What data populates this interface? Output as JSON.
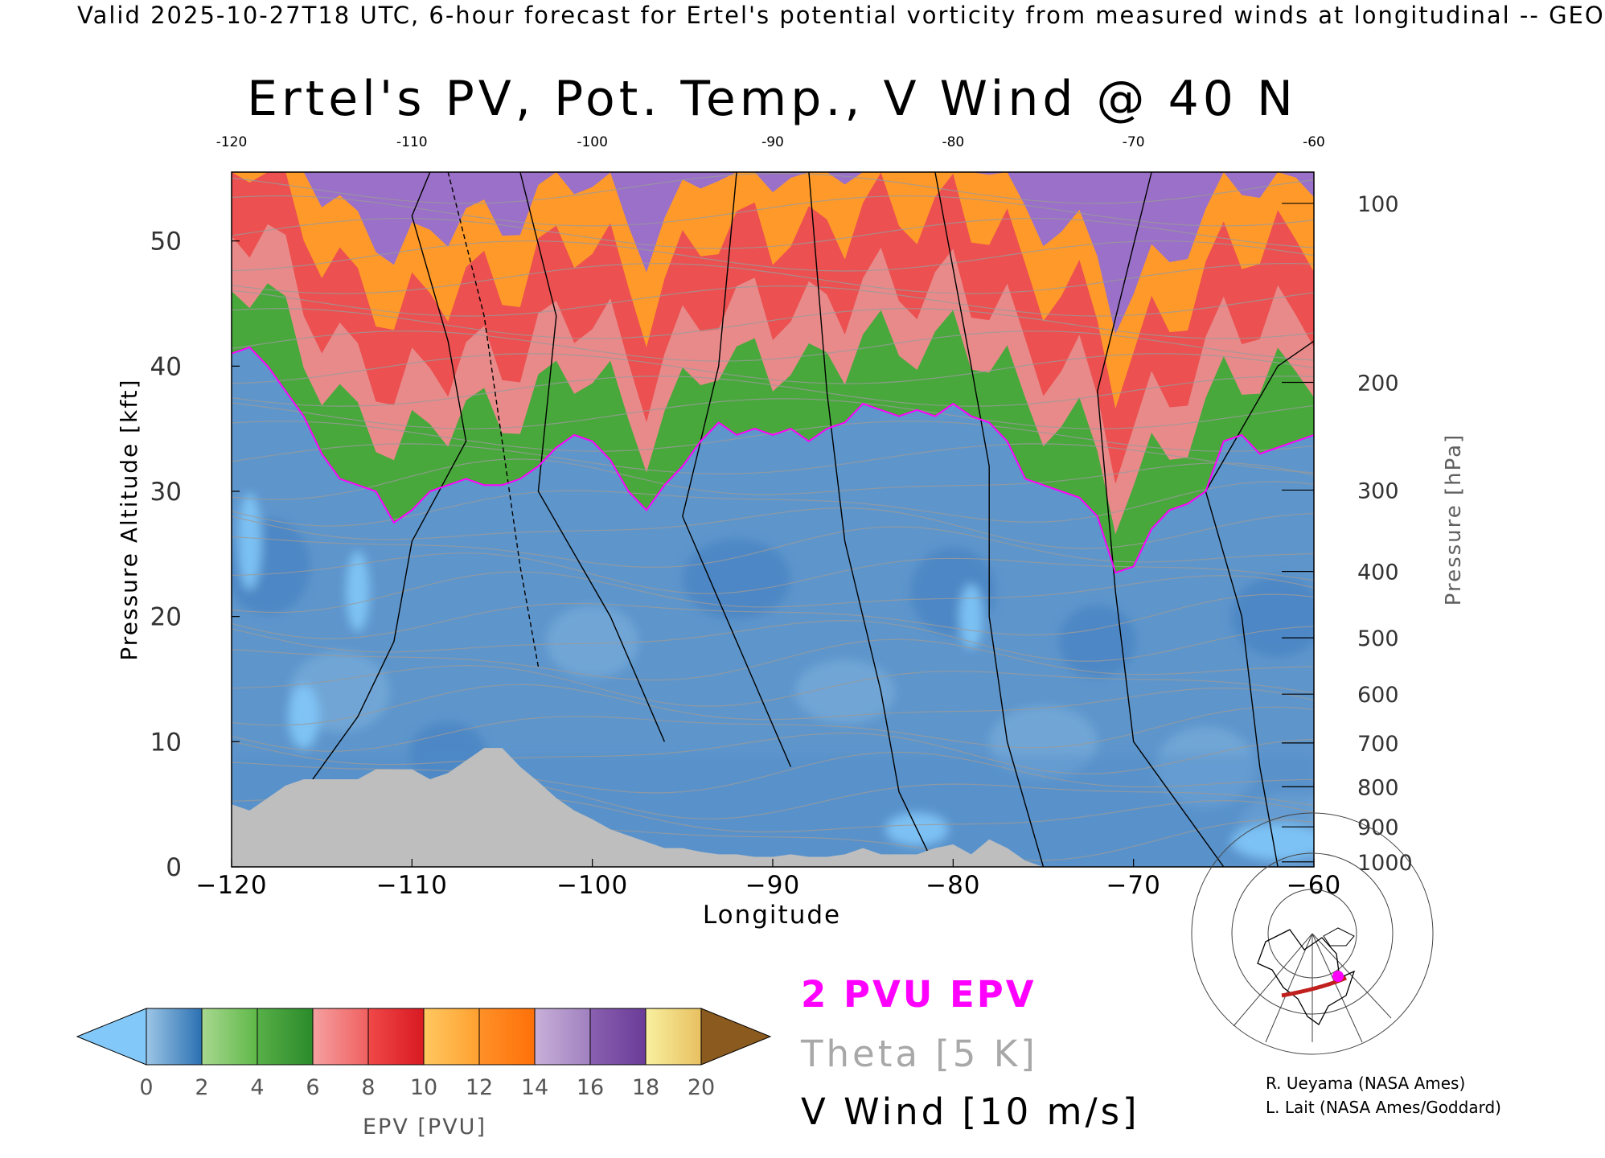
{
  "header": "Valid 2025-10-27T18 UTC, 6-hour forecast for Ertel's potential vorticity from measured winds at longitudinal -- GEO",
  "chart_data": {
    "type": "heatmap",
    "title": "Ertel's PV, Pot. Temp., V Wind @ 40 N",
    "xlabel": "Longitude",
    "ylabel_left": "Pressure Altitude [kft]",
    "ylabel_right": "Pressure [hPa]",
    "xlim": [
      -120,
      -60
    ],
    "ylim": [
      0,
      55.5
    ],
    "x_ticks": [
      -120,
      -110,
      -100,
      -90,
      -80,
      -70,
      -60
    ],
    "x_tick_labels": [
      "−120",
      "−110",
      "−100",
      "−90",
      "−80",
      "−70",
      "−60"
    ],
    "top_tick_labels": [
      "-120",
      "-110",
      "-100",
      "-90",
      "-80",
      "-70",
      "-60"
    ],
    "y_ticks": [
      0,
      10,
      20,
      30,
      40,
      50
    ],
    "y_tick_labels": [
      "0",
      "10",
      "20",
      "30",
      "40",
      "50"
    ],
    "pressure_ticks": [
      {
        "label": "100",
        "kft": 53.0
      },
      {
        "label": "200",
        "kft": 38.7
      },
      {
        "label": "300",
        "kft": 30.1
      },
      {
        "label": "400",
        "kft": 23.6
      },
      {
        "label": "500",
        "kft": 18.3
      },
      {
        "label": "600",
        "kft": 13.8
      },
      {
        "label": "700",
        "kft": 9.9
      },
      {
        "label": "800",
        "kft": 6.4
      },
      {
        "label": "900",
        "kft": 3.2
      },
      {
        "label": "1000",
        "kft": 0.4
      }
    ],
    "tropopause_2pvu_kft": [
      [
        -120,
        41.0
      ],
      [
        -119,
        41.5
      ],
      [
        -118,
        40.0
      ],
      [
        -117,
        38.0
      ],
      [
        -116,
        36.0
      ],
      [
        -115,
        33.0
      ],
      [
        -114,
        31.0
      ],
      [
        -113,
        30.5
      ],
      [
        -112,
        30.0
      ],
      [
        -111,
        27.5
      ],
      [
        -110,
        28.5
      ],
      [
        -109,
        30.0
      ],
      [
        -108,
        30.5
      ],
      [
        -107,
        31.0
      ],
      [
        -106,
        30.5
      ],
      [
        -105,
        30.5
      ],
      [
        -104,
        31.0
      ],
      [
        -103,
        32.0
      ],
      [
        -102,
        33.5
      ],
      [
        -101,
        34.5
      ],
      [
        -100,
        34.0
      ],
      [
        -99,
        32.5
      ],
      [
        -98,
        30.0
      ],
      [
        -97,
        28.5
      ],
      [
        -96,
        30.5
      ],
      [
        -95,
        32.0
      ],
      [
        -94,
        34.0
      ],
      [
        -93,
        35.5
      ],
      [
        -92,
        34.5
      ],
      [
        -91,
        35.0
      ],
      [
        -90,
        34.5
      ],
      [
        -89,
        35.0
      ],
      [
        -88,
        34.0
      ],
      [
        -87,
        35.0
      ],
      [
        -86,
        35.5
      ],
      [
        -85,
        37.0
      ],
      [
        -84,
        36.5
      ],
      [
        -83,
        36.0
      ],
      [
        -82,
        36.5
      ],
      [
        -81,
        36.0
      ],
      [
        -80,
        37.0
      ],
      [
        -79,
        36.0
      ],
      [
        -78,
        35.5
      ],
      [
        -77,
        34.0
      ],
      [
        -76,
        31.0
      ],
      [
        -75,
        30.5
      ],
      [
        -74,
        30.0
      ],
      [
        -73,
        29.5
      ],
      [
        -72,
        28.0
      ],
      [
        -71,
        23.5
      ],
      [
        -70,
        24.0
      ],
      [
        -69,
        27.0
      ],
      [
        -68,
        28.5
      ],
      [
        -67,
        29.0
      ],
      [
        -66,
        30.0
      ],
      [
        -65,
        34.0
      ],
      [
        -64,
        34.5
      ],
      [
        -63,
        33.0
      ],
      [
        -62,
        33.5
      ],
      [
        -61,
        34.0
      ],
      [
        -60,
        34.5
      ]
    ],
    "terrain_kft": [
      [
        -120,
        5.0
      ],
      [
        -119,
        4.5
      ],
      [
        -118,
        5.5
      ],
      [
        -117,
        6.5
      ],
      [
        -116,
        7.0
      ],
      [
        -115,
        7.0
      ],
      [
        -114,
        7.0
      ],
      [
        -113,
        7.0
      ],
      [
        -112,
        7.8
      ],
      [
        -111,
        7.8
      ],
      [
        -110,
        7.8
      ],
      [
        -109,
        7.0
      ],
      [
        -108,
        7.5
      ],
      [
        -107,
        8.5
      ],
      [
        -106,
        9.5
      ],
      [
        -105,
        9.5
      ],
      [
        -104,
        8.0
      ],
      [
        -103,
        6.8
      ],
      [
        -102,
        5.5
      ],
      [
        -101,
        4.5
      ],
      [
        -100,
        3.8
      ],
      [
        -99,
        3.0
      ],
      [
        -98,
        2.5
      ],
      [
        -97,
        2.0
      ],
      [
        -96,
        1.5
      ],
      [
        -95,
        1.5
      ],
      [
        -94,
        1.2
      ],
      [
        -93,
        1.0
      ],
      [
        -92,
        1.0
      ],
      [
        -91,
        0.8
      ],
      [
        -90,
        0.8
      ],
      [
        -89,
        1.0
      ],
      [
        -88,
        0.8
      ],
      [
        -87,
        0.8
      ],
      [
        -86,
        1.0
      ],
      [
        -85,
        1.5
      ],
      [
        -84,
        1.0
      ],
      [
        -83,
        1.0
      ],
      [
        -82,
        1.0
      ],
      [
        -81,
        1.5
      ],
      [
        -80,
        1.8
      ],
      [
        -79,
        1.0
      ],
      [
        -78,
        2.2
      ],
      [
        -77,
        1.5
      ],
      [
        -76,
        0.5
      ],
      [
        -75,
        0.0
      ],
      [
        -60,
        0.0
      ]
    ],
    "colorbar": {
      "label": "EPV [PVU]",
      "ticks": [
        "0",
        "2",
        "4",
        "6",
        "8",
        "10",
        "12",
        "14",
        "16",
        "18",
        "20"
      ],
      "under_color": "#82c8f8",
      "over_color": "#8b5a1e",
      "bins": [
        [
          "#9cc6e6",
          "#2b70b2"
        ],
        [
          "#a8d890",
          "#5fb848"
        ],
        [
          "#58b048",
          "#2a8a2a"
        ],
        [
          "#f5a0a0",
          "#f06060"
        ],
        [
          "#f04848",
          "#d81a22"
        ],
        [
          "#ffc860",
          "#ffa030"
        ],
        [
          "#ff9028",
          "#ff7008"
        ],
        [
          "#c8b0d8",
          "#a080c0"
        ],
        [
          "#8a60b0",
          "#6a3c98"
        ],
        [
          "#f8f0a0",
          "#e8c060"
        ]
      ]
    },
    "region_colors": {
      "troposphere": "#5e96cc",
      "low_pv": "#82c8f8",
      "stratosphere_low": "#48a83c",
      "stratosphere_mid": "#ec5050",
      "stratosphere_high": "#ff9a2a",
      "stratosphere_top": "#9a70c8",
      "terrain": "#bebebe",
      "tropopause": "#ff00ff"
    }
  },
  "legend": {
    "pvu": "2 PVU EPV",
    "theta": "Theta [5 K]",
    "vwind": "V Wind [10 m/s]",
    "pvu_color": "#ff00ff",
    "theta_color": "#a8a8a8"
  },
  "credits": {
    "line1": "R. Ueyama (NASA Ames)",
    "line2": "L. Lait (NASA Ames/Goddard)"
  }
}
